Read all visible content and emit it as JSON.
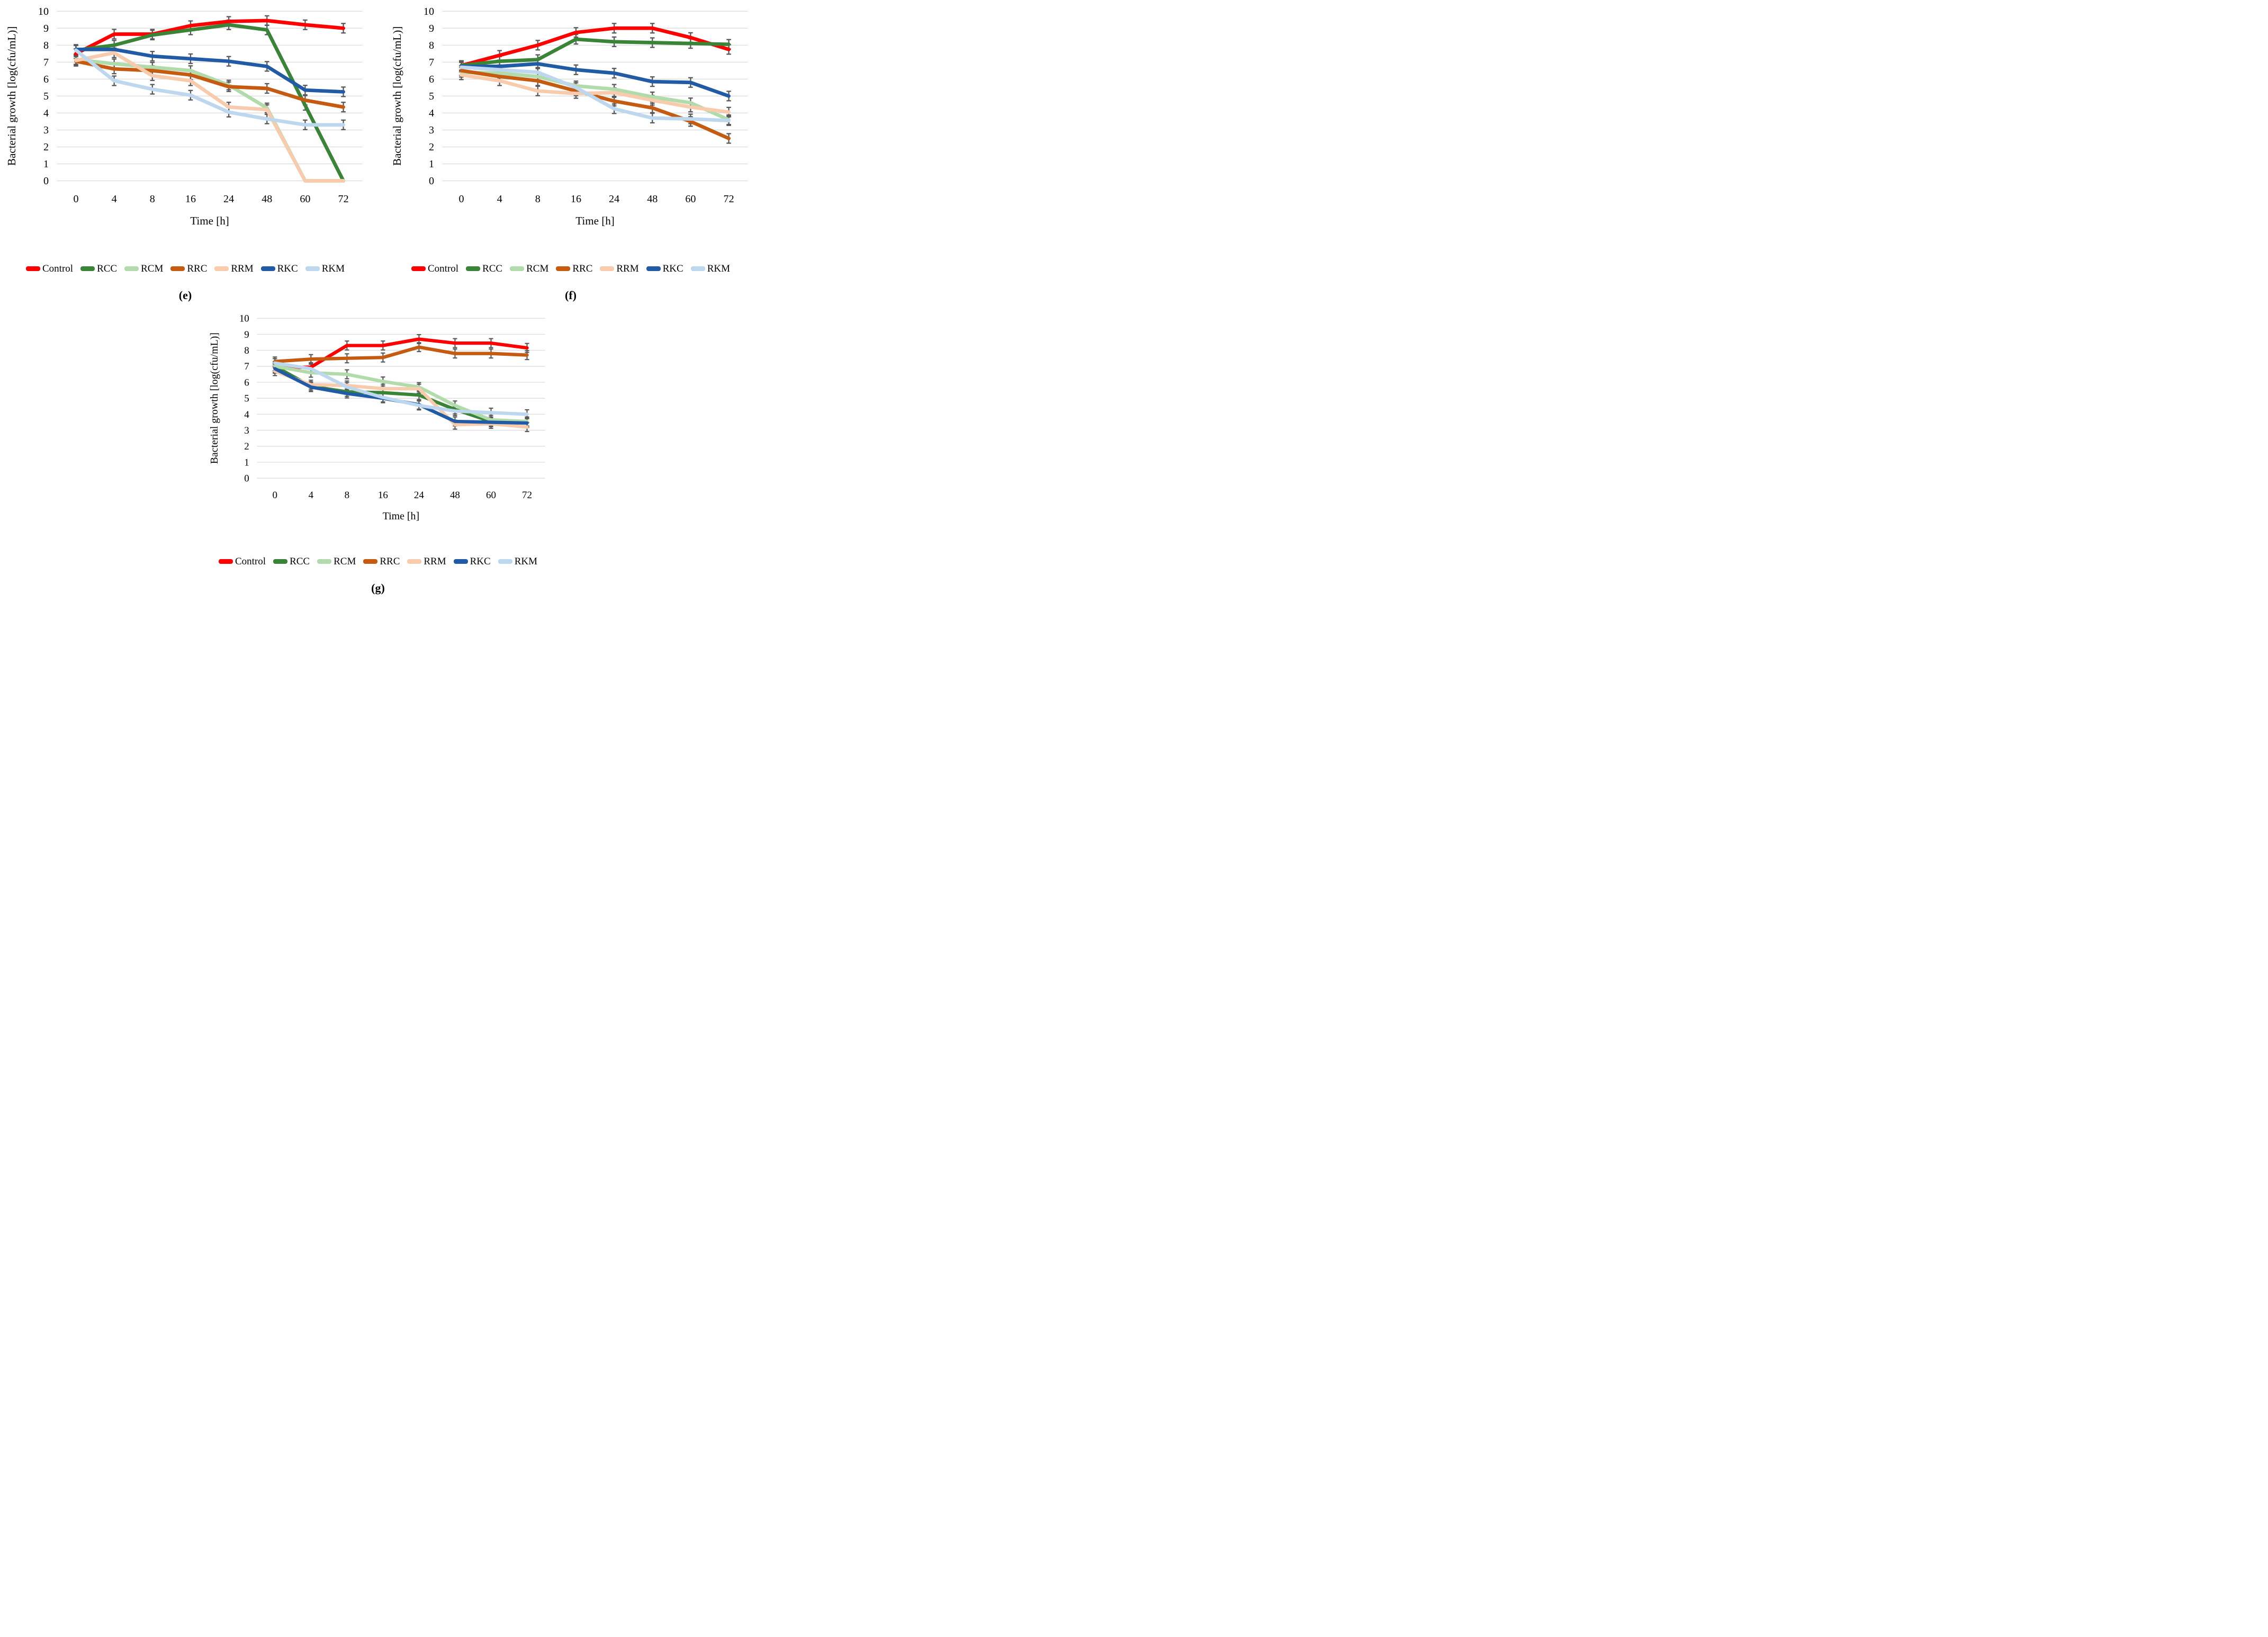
{
  "figure": {
    "y_axis_label": "Bacterial growth [log(cfu/mL)]",
    "x_axis_label": "Time [h]",
    "x_tick_labels": [
      "0",
      "4",
      "8",
      "16",
      "24",
      "48",
      "60",
      "72"
    ],
    "y_tick_labels": [
      "0",
      "1",
      "2",
      "3",
      "4",
      "5",
      "6",
      "7",
      "8",
      "9",
      "10"
    ],
    "ylim": [
      0,
      10
    ],
    "grid_color": "#D9D9D9",
    "error_bar_color": "#595959",
    "error_bar_half_height": 0.28,
    "legend": [
      {
        "label": "Control",
        "color": "#FF0000"
      },
      {
        "label": "RCC",
        "color": "#3A8438"
      },
      {
        "label": "RCM",
        "color": "#B2DBAC"
      },
      {
        "label": "RRC",
        "color": "#C55A11"
      },
      {
        "label": "RRM",
        "color": "#F8CBAD"
      },
      {
        "label": "RKC",
        "color": "#215BA6"
      },
      {
        "label": "RKM",
        "color": "#BDD7EE"
      }
    ]
  },
  "chart_data": [
    {
      "id": "e",
      "caption": "(e)",
      "type": "line",
      "title": "",
      "xlabel": "Time [h]",
      "ylabel": "Bacterial growth [log(cfu/mL)]",
      "ylim": [
        0,
        10
      ],
      "grid": true,
      "legend_position": "bottom",
      "x": [
        0,
        4,
        8,
        16,
        24,
        48,
        60,
        72
      ],
      "series": [
        {
          "name": "Control",
          "color": "#FF0000",
          "values": [
            7.5,
            8.65,
            8.65,
            9.15,
            9.4,
            9.45,
            9.2,
            9.0
          ]
        },
        {
          "name": "RCC",
          "color": "#3A8438",
          "values": [
            7.7,
            8.0,
            8.6,
            8.9,
            9.2,
            8.9,
            4.45,
            0
          ]
        },
        {
          "name": "RCM",
          "color": "#B2DBAC",
          "values": [
            7.15,
            6.9,
            6.7,
            6.5,
            5.65,
            4.3,
            0,
            0
          ]
        },
        {
          "name": "RRC",
          "color": "#C55A11",
          "values": [
            7.05,
            6.6,
            6.5,
            6.25,
            5.55,
            5.45,
            4.75,
            4.35
          ]
        },
        {
          "name": "RRM",
          "color": "#F8CBAD",
          "values": [
            7.1,
            7.55,
            6.2,
            5.9,
            4.35,
            4.2,
            0,
            0
          ]
        },
        {
          "name": "RKC",
          "color": "#215BA6",
          "values": [
            7.75,
            7.75,
            7.35,
            7.2,
            7.05,
            6.75,
            5.35,
            5.25
          ]
        },
        {
          "name": "RKM",
          "color": "#BDD7EE",
          "values": [
            7.7,
            5.9,
            5.4,
            5.05,
            4.05,
            3.65,
            3.3,
            3.3
          ]
        }
      ]
    },
    {
      "id": "f",
      "caption": "(f)",
      "type": "line",
      "title": "",
      "xlabel": "Time [h]",
      "ylabel": "Bacterial growth [log(cfu/mL)]",
      "ylim": [
        0,
        10
      ],
      "grid": true,
      "legend_position": "bottom",
      "x": [
        0,
        4,
        8,
        16,
        24,
        48,
        60,
        72
      ],
      "series": [
        {
          "name": "Control",
          "color": "#FF0000",
          "values": [
            6.8,
            7.4,
            8.0,
            8.75,
            9.0,
            9.0,
            8.45,
            7.75
          ]
        },
        {
          "name": "RCC",
          "color": "#3A8438",
          "values": [
            6.8,
            7.05,
            7.15,
            8.35,
            8.2,
            8.15,
            8.1,
            8.05
          ]
        },
        {
          "name": "RCM",
          "color": "#B2DBAC",
          "values": [
            6.4,
            6.35,
            6.15,
            5.6,
            5.4,
            4.95,
            4.6,
            3.6
          ]
        },
        {
          "name": "RRC",
          "color": "#C55A11",
          "values": [
            6.5,
            6.15,
            5.9,
            5.3,
            4.7,
            4.3,
            3.5,
            2.5
          ]
        },
        {
          "name": "RRM",
          "color": "#F8CBAD",
          "values": [
            6.25,
            5.9,
            5.3,
            5.15,
            5.2,
            4.75,
            4.35,
            4.05
          ]
        },
        {
          "name": "RKC",
          "color": "#215BA6",
          "values": [
            6.75,
            6.75,
            6.9,
            6.55,
            6.35,
            5.85,
            5.8,
            5.0
          ]
        },
        {
          "name": "RKM",
          "color": "#BDD7EE",
          "values": [
            6.7,
            6.55,
            6.4,
            5.5,
            4.25,
            3.7,
            3.65,
            3.55
          ]
        }
      ]
    },
    {
      "id": "g",
      "caption": "(g)",
      "type": "line",
      "title": "",
      "xlabel": "Time [h]",
      "ylabel": "Bacterial growth [log(cfu/mL)]",
      "ylim": [
        0,
        10
      ],
      "grid": true,
      "legend_position": "bottom",
      "x": [
        0,
        4,
        8,
        16,
        24,
        48,
        60,
        72
      ],
      "series": [
        {
          "name": "Control",
          "color": "#FF0000",
          "values": [
            6.9,
            6.95,
            8.3,
            8.3,
            8.7,
            8.45,
            8.45,
            8.15
          ]
        },
        {
          "name": "RCC",
          "color": "#3A8438",
          "values": [
            7.0,
            5.75,
            5.4,
            5.35,
            5.2,
            4.3,
            3.55,
            3.5
          ]
        },
        {
          "name": "RCM",
          "color": "#B2DBAC",
          "values": [
            7.0,
            6.6,
            6.5,
            6.05,
            5.7,
            4.55,
            3.65,
            3.55
          ]
        },
        {
          "name": "RRC",
          "color": "#C55A11",
          "values": [
            7.3,
            7.45,
            7.5,
            7.55,
            8.2,
            7.8,
            7.8,
            7.7
          ]
        },
        {
          "name": "RRM",
          "color": "#F8CBAD",
          "values": [
            6.7,
            5.85,
            5.8,
            5.6,
            5.6,
            3.35,
            3.4,
            3.2
          ]
        },
        {
          "name": "RKC",
          "color": "#215BA6",
          "values": [
            6.85,
            5.7,
            5.3,
            5.0,
            4.6,
            3.55,
            3.5,
            3.45
          ]
        },
        {
          "name": "RKM",
          "color": "#BDD7EE",
          "values": [
            7.2,
            6.85,
            5.7,
            5.05,
            4.55,
            4.2,
            4.1,
            4.0
          ]
        }
      ]
    }
  ]
}
